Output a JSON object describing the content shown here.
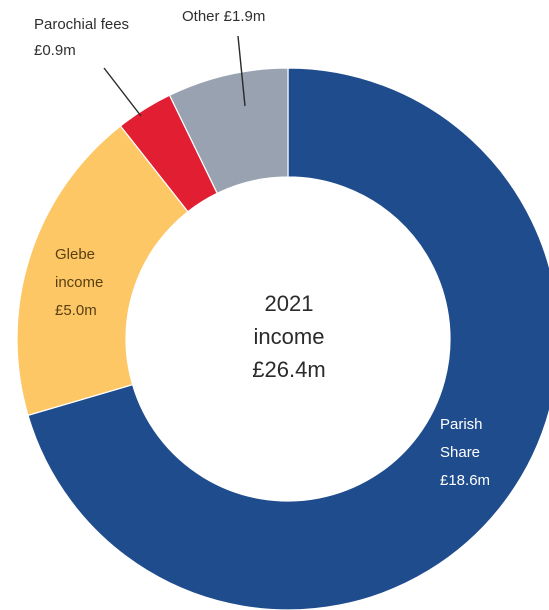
{
  "chart_data": {
    "type": "pie",
    "categories": [
      "Parish Share",
      "Glebe income",
      "Parochial fees",
      "Other"
    ],
    "values": [
      18.6,
      5.0,
      0.9,
      1.9
    ],
    "unit": "£m",
    "total": 26.4,
    "colors": [
      "#1f4c8d",
      "#fdc766",
      "#e21e33",
      "#98a2b1"
    ],
    "center_text": [
      "2021",
      "income",
      "£26.4m"
    ],
    "labels": {
      "parish_share": [
        "Parish",
        "Share",
        "£18.6m"
      ],
      "glebe_income": [
        "Glebe",
        "income",
        "£5.0m"
      ],
      "parochial_fees": [
        "Parochial fees",
        "£0.9m"
      ],
      "other": [
        "Other £1.9m"
      ]
    }
  }
}
